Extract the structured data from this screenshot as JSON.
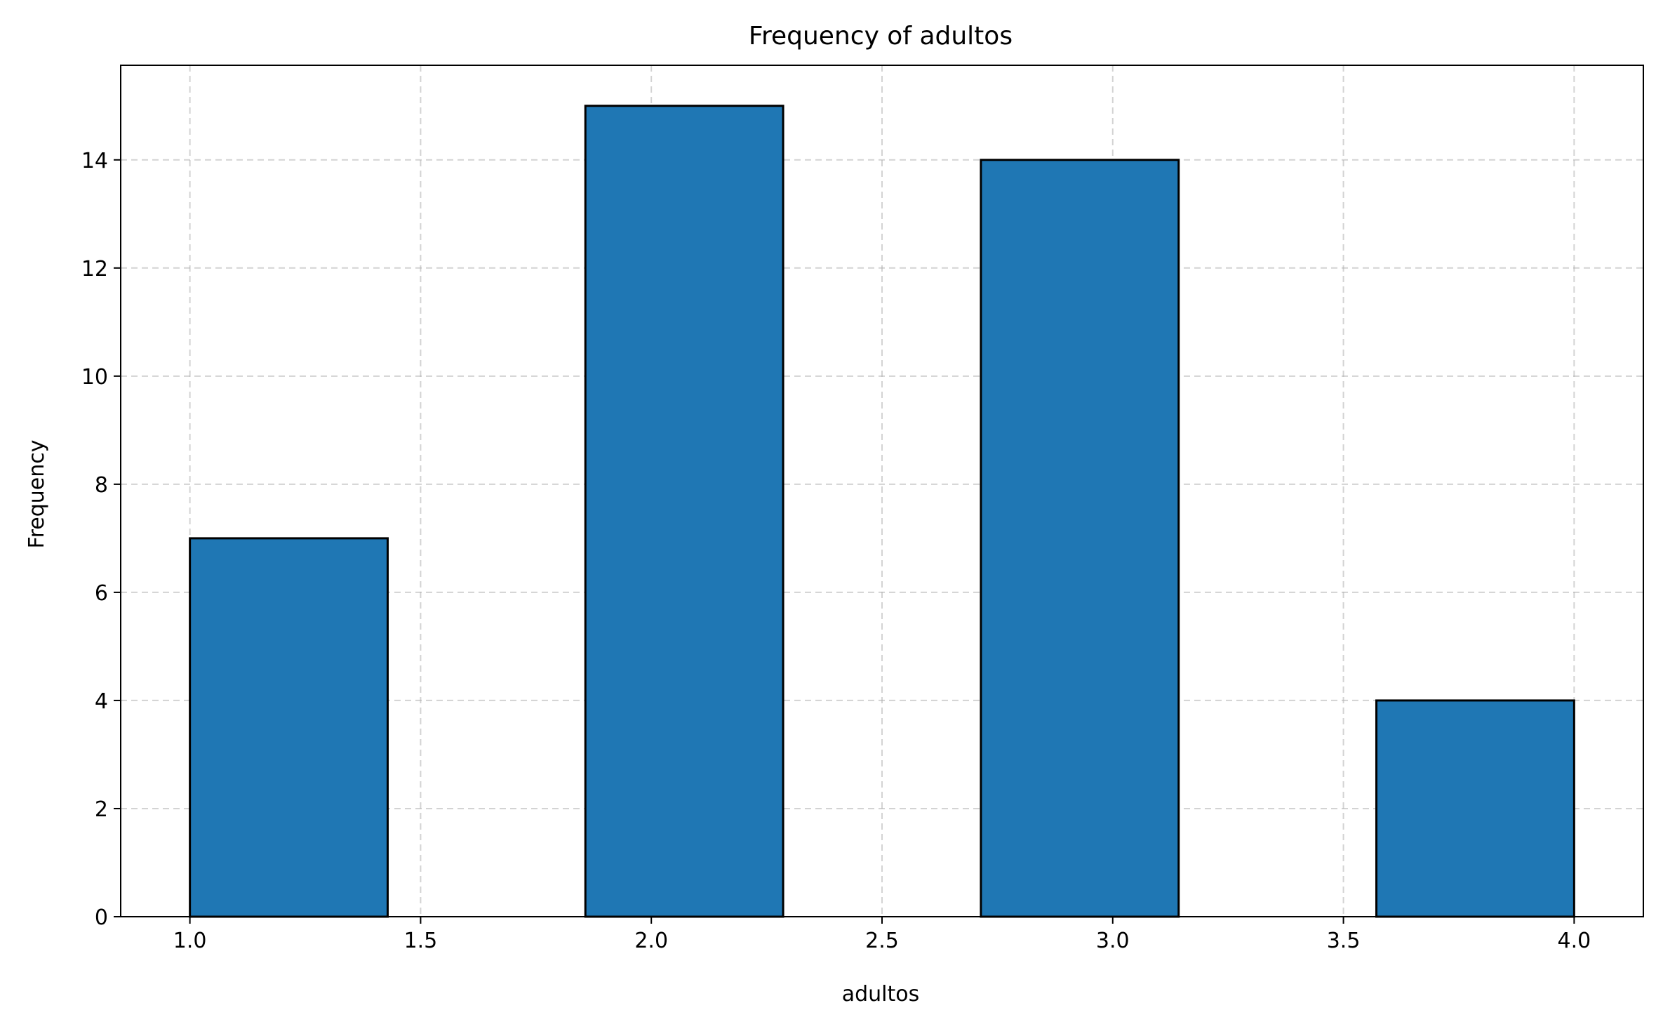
{
  "chart_data": {
    "type": "bar",
    "title": "Frequency of adultos",
    "xlabel": "adultos",
    "ylabel": "Frequency",
    "bins": [
      {
        "start": 1.0,
        "end": 1.4286,
        "count": 7
      },
      {
        "start": 1.4286,
        "end": 1.8571,
        "count": 0
      },
      {
        "start": 1.8571,
        "end": 2.2857,
        "count": 15
      },
      {
        "start": 2.2857,
        "end": 2.7143,
        "count": 0
      },
      {
        "start": 2.7143,
        "end": 3.1429,
        "count": 14
      },
      {
        "start": 3.1429,
        "end": 3.5714,
        "count": 0
      },
      {
        "start": 3.5714,
        "end": 4.0,
        "count": 4
      }
    ],
    "xlim": [
      0.85,
      4.15
    ],
    "ylim": [
      0,
      15.75
    ],
    "xticks": [
      1.0,
      1.5,
      2.0,
      2.5,
      3.0,
      3.5,
      4.0
    ],
    "xtick_labels": [
      "1.0",
      "1.5",
      "2.0",
      "2.5",
      "3.0",
      "3.5",
      "4.0"
    ],
    "yticks": [
      0,
      2,
      4,
      6,
      8,
      10,
      12,
      14
    ],
    "ytick_labels": [
      "0",
      "2",
      "4",
      "6",
      "8",
      "10",
      "12",
      "14"
    ],
    "grid": true,
    "bar_color": "#1f77b4",
    "edge_color": "#000000"
  }
}
